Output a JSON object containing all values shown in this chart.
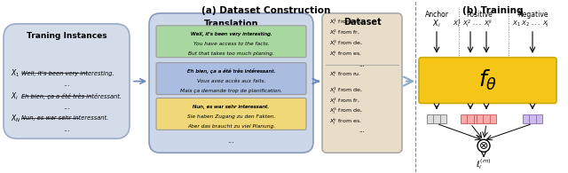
{
  "title_a": "(a) Dataset Construction",
  "title_b": "(b) Training",
  "bg_color": "#ffffff",
  "box1_color": "#d0d8e8",
  "box_translation_color": "#c8d4e8",
  "box_green_color": "#b8d8b8",
  "box_blue_color": "#b8c8e8",
  "box_yellow_color": "#f0d890",
  "box_dataset_color": "#e8d8b8",
  "box_orange_color": "#f5c518",
  "anchor_label": "Anchor",
  "positive_label": "Positive",
  "negative_label": "Negative"
}
